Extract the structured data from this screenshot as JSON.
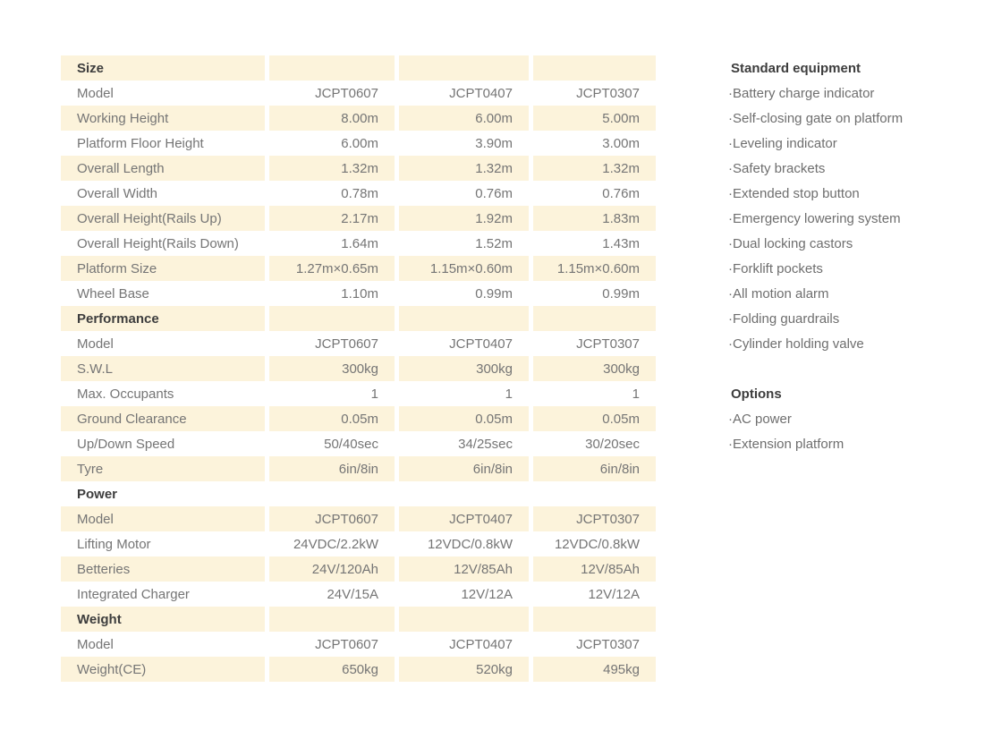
{
  "palette": {
    "page_background": "#FFFFFF",
    "row_highlight": "#FCF3DB",
    "row_plain": "#FFFFFF",
    "section_text": "#3D3D3D",
    "body_text": "#757575",
    "sidebar_heading": "#3D3D3D",
    "sidebar_text": "#6E6E6E"
  },
  "table": {
    "model_columns": [
      "JCPT0607",
      "JCPT0407",
      "JCPT0307"
    ],
    "rows": [
      {
        "type": "section",
        "label": "Size",
        "values": [
          "",
          "",
          ""
        ]
      },
      {
        "type": "data",
        "label": "Model",
        "values": [
          "JCPT0607",
          "JCPT0407",
          "JCPT0307"
        ]
      },
      {
        "type": "data",
        "label": "Working Height",
        "values": [
          "8.00m",
          "6.00m",
          "5.00m"
        ]
      },
      {
        "type": "data",
        "label": "Platform Floor Height",
        "values": [
          "6.00m",
          "3.90m",
          "3.00m"
        ]
      },
      {
        "type": "data",
        "label": "Overall Length",
        "values": [
          "1.32m",
          "1.32m",
          "1.32m"
        ]
      },
      {
        "type": "data",
        "label": "Overall Width",
        "values": [
          "0.78m",
          "0.76m",
          "0.76m"
        ]
      },
      {
        "type": "data",
        "label": "Overall Height(Rails Up)",
        "values": [
          "2.17m",
          "1.92m",
          "1.83m"
        ]
      },
      {
        "type": "data",
        "label": "Overall Height(Rails Down)",
        "values": [
          "1.64m",
          "1.52m",
          "1.43m"
        ]
      },
      {
        "type": "data",
        "label": "Platform Size",
        "values": [
          "1.27m×0.65m",
          "1.15m×0.60m",
          "1.15m×0.60m"
        ]
      },
      {
        "type": "data",
        "label": "Wheel Base",
        "values": [
          "1.10m",
          "0.99m",
          "0.99m"
        ]
      },
      {
        "type": "section",
        "label": "Performance",
        "values": [
          "",
          "",
          ""
        ]
      },
      {
        "type": "data",
        "label": "Model",
        "values": [
          "JCPT0607",
          "JCPT0407",
          "JCPT0307"
        ]
      },
      {
        "type": "data",
        "label": "S.W.L",
        "values": [
          "300kg",
          "300kg",
          "300kg"
        ]
      },
      {
        "type": "data",
        "label": "Max. Occupants",
        "values": [
          "1",
          "1",
          "1"
        ]
      },
      {
        "type": "data",
        "label": "Ground Clearance",
        "values": [
          "0.05m",
          "0.05m",
          "0.05m"
        ]
      },
      {
        "type": "data",
        "label": "Up/Down Speed",
        "values": [
          "50/40sec",
          "34/25sec",
          "30/20sec"
        ]
      },
      {
        "type": "data",
        "label": "Tyre",
        "values": [
          "6in/8in",
          "6in/8in",
          "6in/8in"
        ]
      },
      {
        "type": "section",
        "label": "Power",
        "values": [
          "",
          "",
          ""
        ]
      },
      {
        "type": "data",
        "label": "Model",
        "values": [
          "JCPT0607",
          "JCPT0407",
          "JCPT0307"
        ]
      },
      {
        "type": "data",
        "label": "Lifting Motor",
        "values": [
          "24VDC/2.2kW",
          "12VDC/0.8kW",
          "12VDC/0.8kW"
        ]
      },
      {
        "type": "data",
        "label": "Betteries",
        "values": [
          "24V/120Ah",
          "12V/85Ah",
          "12V/85Ah"
        ]
      },
      {
        "type": "data",
        "label": "Integrated Charger",
        "values": [
          "24V/15A",
          "12V/12A",
          "12V/12A"
        ]
      },
      {
        "type": "section",
        "label": "Weight",
        "values": [
          "",
          "",
          ""
        ]
      },
      {
        "type": "data",
        "label": "Model",
        "values": [
          "JCPT0607",
          "JCPT0407",
          "JCPT0307"
        ]
      },
      {
        "type": "data",
        "label": "Weight(CE)",
        "values": [
          "650kg",
          "520kg",
          "495kg"
        ]
      }
    ]
  },
  "sidebar": {
    "bullet": "·",
    "sections": [
      {
        "heading": "Standard equipment",
        "items": [
          "Battery charge indicator",
          "Self-closing gate on platform",
          "Leveling indicator",
          "Safety brackets",
          "Extended stop button",
          "Emergency lowering system",
          "Dual locking castors",
          "Forklift pockets",
          "All motion alarm",
          "Folding guardrails",
          "Cylinder holding valve"
        ]
      },
      {
        "heading": "Options",
        "items": [
          "AC power",
          "Extension platform"
        ]
      }
    ]
  }
}
